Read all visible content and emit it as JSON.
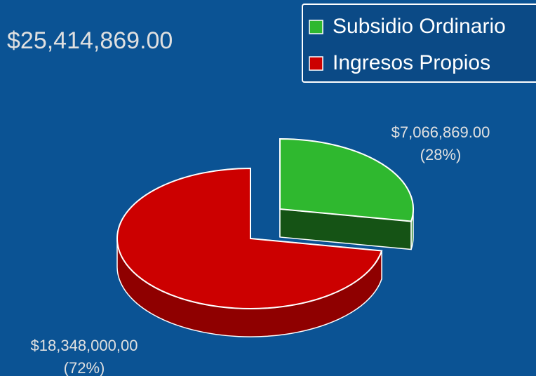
{
  "chart_data": {
    "type": "pie",
    "title": "$25,414,869.00",
    "categories": [
      "Subsidio Ordinario",
      "Ingresos Propios"
    ],
    "values": [
      7066869,
      18348000
    ],
    "value_labels": [
      "$7,066,869.00",
      "$18,348,000,00"
    ],
    "percent_labels": [
      "(28%)",
      "(72%)"
    ],
    "colors": [
      "#2fb82f",
      "#cc0000"
    ],
    "legend": "upper right"
  }
}
